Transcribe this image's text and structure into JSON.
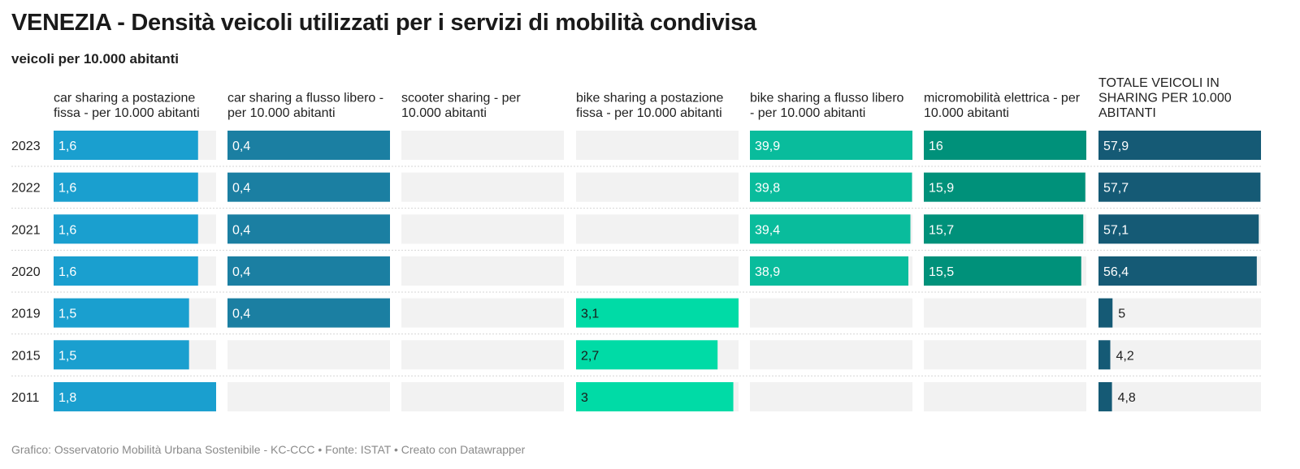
{
  "title": "VENEZIA - Densità veicoli utilizzati per i servizi di mobilità condivisa",
  "subtitle": "veicoli per 10.000 abitanti",
  "footer": "Grafico: Osservatorio Mobilità Urbana Sostenibile - KC-CCC • Fonte: ISTAT • Creato con Datawrapper",
  "chart_data": {
    "type": "bar",
    "orientation": "horizontal",
    "layout": "split-bars",
    "categories": [
      "2023",
      "2022",
      "2021",
      "2020",
      "2019",
      "2015",
      "2011"
    ],
    "series": [
      {
        "name": "car sharing a postazione fissa - per 10.000 abitanti",
        "color": "#1a9fcf",
        "max": 1.8,
        "values": [
          1.6,
          1.6,
          1.6,
          1.6,
          1.5,
          1.5,
          1.8
        ],
        "labels": [
          "1,6",
          "1,6",
          "1,6",
          "1,6",
          "1,5",
          "1,5",
          "1,8"
        ]
      },
      {
        "name": "car sharing a flusso libero - per 10.000 abitanti",
        "color": "#1b7fa2",
        "max": 0.4,
        "values": [
          0.4,
          0.4,
          0.4,
          0.4,
          0.4,
          null,
          null
        ],
        "labels": [
          "0,4",
          "0,4",
          "0,4",
          "0,4",
          "0,4",
          "",
          ""
        ]
      },
      {
        "name": "scooter sharing - per 10.000 abitanti",
        "color": "#1b7fa2",
        "max": 1,
        "values": [
          null,
          null,
          null,
          null,
          null,
          null,
          null
        ],
        "labels": [
          "",
          "",
          "",
          "",
          "",
          "",
          ""
        ]
      },
      {
        "name": "bike sharing a postazione fissa - per 10.000 abitanti",
        "color": "#00dba6",
        "max": 3.1,
        "values": [
          null,
          null,
          null,
          null,
          3.1,
          2.7,
          3
        ],
        "labels": [
          "",
          "",
          "",
          "",
          "3,1",
          "2,7",
          "3"
        ]
      },
      {
        "name": "bike sharing a flusso libero - per 10.000 abitanti",
        "color": "#09bc9c",
        "max": 39.9,
        "values": [
          39.9,
          39.8,
          39.4,
          38.9,
          null,
          null,
          null
        ],
        "labels": [
          "39,9",
          "39,8",
          "39,4",
          "38,9",
          "",
          "",
          ""
        ]
      },
      {
        "name": "micromobilità elettrica - per 10.000 abitanti",
        "color": "#00917a",
        "max": 16,
        "values": [
          16,
          15.9,
          15.7,
          15.5,
          null,
          null,
          null
        ],
        "labels": [
          "16",
          "15,9",
          "15,7",
          "15,5",
          "",
          "",
          ""
        ]
      },
      {
        "name": "TOTALE VEICOLI IN SHARING PER 10.000 ABITANTI",
        "color": "#155a75",
        "max": 57.9,
        "values": [
          57.9,
          57.7,
          57.1,
          56.4,
          5,
          4.2,
          4.8
        ],
        "labels": [
          "57,9",
          "57,7",
          "57,1",
          "56,4",
          "5",
          "4,2",
          "4,8"
        ]
      }
    ],
    "background_color": "#f2f2f2",
    "grid": false
  }
}
